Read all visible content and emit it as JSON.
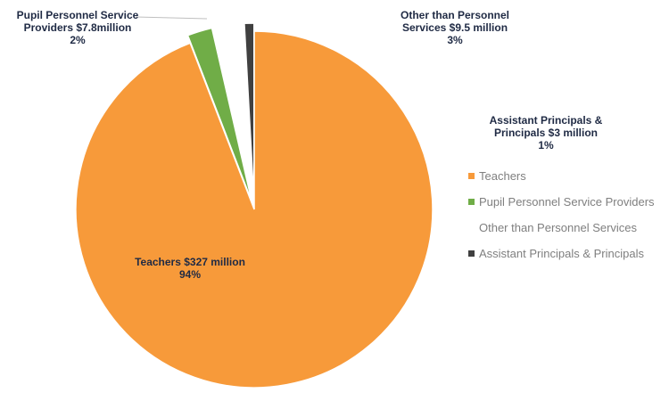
{
  "chart_data": {
    "type": "pie",
    "title": "",
    "series": [
      {
        "name": "",
        "slices": [
          {
            "label": "Teachers",
            "value": 327,
            "percent": 94,
            "color": "#F79A3A",
            "label_line1": "Teachers $327 million",
            "label_line2": "94%"
          },
          {
            "label": "Pupil Personnel Service Providers",
            "value": 7.8,
            "percent": 2,
            "color": "#70AD47",
            "label_line1": "Pupil Personnel Service",
            "label_line2": "Providers $7.8million",
            "label_line3": "2%"
          },
          {
            "label": "Other than Personnel Services",
            "value": 9.5,
            "percent": 3,
            "color": "#FFFFFF",
            "label_line1": "Other than Personnel",
            "label_line2": "Services $9.5 million",
            "label_line3": "3%"
          },
          {
            "label": "Assistant Principals & Principals",
            "value": 3,
            "percent": 1,
            "color": "#404040",
            "label_line1": "Assistant Principals &",
            "label_line2": "Principals $3 million",
            "label_line3": "1%"
          }
        ]
      }
    ],
    "legend": {
      "position": "right",
      "entries": [
        "Teachers",
        "Pupil Personnel Service Providers",
        "Other than Personnel Services",
        "Assistant Principals & Principals"
      ]
    },
    "units": "$ million"
  }
}
